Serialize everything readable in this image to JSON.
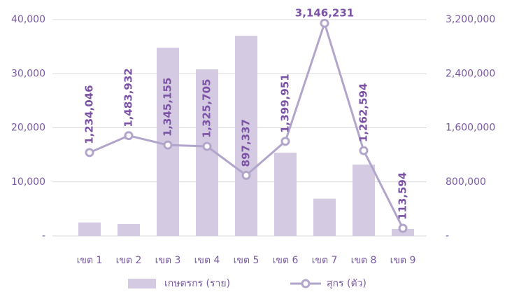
{
  "chart_data": {
    "type": "bar_line",
    "categories": [
      "เขต 1",
      "เขต 2",
      "เขต 3",
      "เขต 4",
      "เขต 5",
      "เขต 6",
      "เขต 7",
      "เขต 8",
      "เขต 9"
    ],
    "series": [
      {
        "name": "เกษตรกร (ราย)",
        "color": "#d4cae2",
        "type": "bar",
        "values": [
          2500,
          2200,
          34800,
          30800,
          37000,
          15400,
          6900,
          13200,
          1300
        ]
      },
      {
        "name": "สุกร (ตัว)",
        "color": "#b2a5cb",
        "type": "line",
        "axis": "y2",
        "values": [
          1234046,
          1483932,
          1345155,
          1325705,
          897337,
          1399951,
          3146231,
          1262594,
          113594
        ],
        "value_labels": [
          "1,234,046",
          "1,483,932",
          "1,345,155",
          "1,325,705",
          "897,337",
          "1,399,951",
          "3,146,231",
          "1,262,594",
          "113,594"
        ]
      }
    ],
    "ylim": [
      0,
      40000
    ],
    "yticks": [
      {
        "value": 0,
        "label": "-"
      },
      {
        "value": 10000,
        "label": "10,000"
      },
      {
        "value": 20000,
        "label": "20,000"
      },
      {
        "value": 30000,
        "label": "30,000"
      },
      {
        "value": 40000,
        "label": "40,000"
      }
    ],
    "y2lim": [
      0,
      3200000
    ],
    "y2ticks": [
      {
        "value": 0,
        "label": "-"
      },
      {
        "value": 800000,
        "label": "800,000"
      },
      {
        "value": 1600000,
        "label": "1,600,000"
      },
      {
        "value": 2400000,
        "label": "2,400,000"
      },
      {
        "value": 3200000,
        "label": "3,200,000"
      }
    ],
    "grid": true,
    "legend": "bottom",
    "label_color": "#7b52a6"
  }
}
